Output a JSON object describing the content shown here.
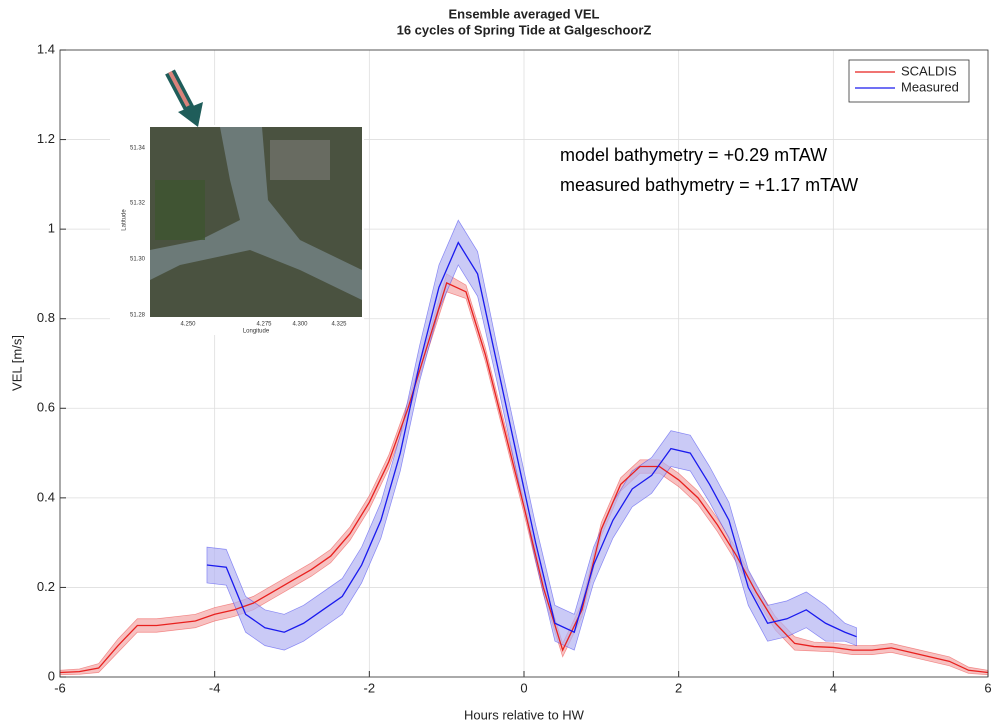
{
  "chart_data": {
    "type": "line",
    "title": "Ensemble averaged VEL",
    "subtitle": "16 cycles of Spring Tide at GalgeschoorZ",
    "x_label": "Hours relative to HW",
    "y_label": "VEL [m/s]",
    "xlim": [
      -6,
      6
    ],
    "xticks": [
      -6,
      -4,
      -2,
      0,
      2,
      4,
      6
    ],
    "ylim": [
      0,
      1.4
    ],
    "yticks": [
      0,
      0.2,
      0.4,
      0.6,
      0.8,
      1,
      1.2,
      1.4
    ],
    "grid": true,
    "legend": "upper right",
    "annotations": [
      "model bathymetry =  +0.29 mTAW",
      "measured bathymetry = +1.17 mTAW"
    ],
    "inset": {
      "x_label": "Longitude",
      "y_label": "Latitude",
      "xticks": [
        "4.250",
        "4.275",
        "4.300",
        "4.325"
      ],
      "yticks": [
        "51.34",
        "51.32",
        "51.30",
        "51.28"
      ]
    },
    "series": [
      {
        "name": "SCALDIS",
        "color": "#e8211f",
        "band_color": "#f4a6a6",
        "x": [
          -6,
          -5.75,
          -5.5,
          -5.25,
          -5,
          -4.75,
          -4.5,
          -4.25,
          -4,
          -3.75,
          -3.5,
          -3.25,
          -3,
          -2.75,
          -2.5,
          -2.25,
          -2,
          -1.75,
          -1.5,
          -1.25,
          -1,
          -0.75,
          -0.5,
          -0.25,
          0,
          0.25,
          0.5,
          0.75,
          1,
          1.25,
          1.5,
          1.75,
          2,
          2.25,
          2.5,
          2.75,
          3,
          3.25,
          3.5,
          3.75,
          4,
          4.25,
          4.5,
          4.75,
          5,
          5.25,
          5.5,
          5.75,
          6
        ],
        "values": [
          0.01,
          0.012,
          0.02,
          0.07,
          0.115,
          0.115,
          0.12,
          0.125,
          0.14,
          0.15,
          0.165,
          0.19,
          0.215,
          0.24,
          0.27,
          0.32,
          0.39,
          0.48,
          0.6,
          0.74,
          0.88,
          0.86,
          0.72,
          0.55,
          0.38,
          0.2,
          0.06,
          0.15,
          0.33,
          0.43,
          0.47,
          0.47,
          0.44,
          0.4,
          0.34,
          0.27,
          0.19,
          0.12,
          0.075,
          0.068,
          0.066,
          0.06,
          0.06,
          0.065,
          0.055,
          0.045,
          0.035,
          0.015,
          0.01
        ],
        "lower": [
          0.005,
          0.006,
          0.01,
          0.055,
          0.1,
          0.1,
          0.105,
          0.11,
          0.125,
          0.135,
          0.15,
          0.175,
          0.2,
          0.225,
          0.255,
          0.305,
          0.375,
          0.465,
          0.585,
          0.725,
          0.86,
          0.845,
          0.705,
          0.535,
          0.365,
          0.185,
          0.045,
          0.135,
          0.315,
          0.415,
          0.455,
          0.455,
          0.425,
          0.385,
          0.325,
          0.255,
          0.175,
          0.105,
          0.06,
          0.058,
          0.056,
          0.05,
          0.05,
          0.055,
          0.045,
          0.035,
          0.025,
          0.008,
          0.005
        ],
        "upper": [
          0.015,
          0.018,
          0.03,
          0.085,
          0.13,
          0.13,
          0.135,
          0.14,
          0.155,
          0.165,
          0.18,
          0.205,
          0.23,
          0.255,
          0.285,
          0.335,
          0.405,
          0.495,
          0.615,
          0.755,
          0.9,
          0.875,
          0.735,
          0.565,
          0.395,
          0.215,
          0.075,
          0.165,
          0.345,
          0.445,
          0.485,
          0.485,
          0.455,
          0.415,
          0.355,
          0.285,
          0.205,
          0.135,
          0.09,
          0.078,
          0.076,
          0.07,
          0.07,
          0.075,
          0.065,
          0.055,
          0.045,
          0.022,
          0.015
        ]
      },
      {
        "name": "Measured",
        "color": "#1a1aee",
        "band_color": "#b3b3f2",
        "x": [
          -4.1,
          -3.85,
          -3.6,
          -3.35,
          -3.1,
          -2.85,
          -2.6,
          -2.35,
          -2.1,
          -1.85,
          -1.6,
          -1.35,
          -1.1,
          -0.85,
          -0.6,
          -0.35,
          -0.1,
          0.15,
          0.4,
          0.65,
          0.9,
          1.15,
          1.4,
          1.65,
          1.9,
          2.15,
          2.4,
          2.65,
          2.9,
          3.15,
          3.4,
          3.65,
          3.9,
          4.15,
          4.3
        ],
        "values": [
          0.25,
          0.245,
          0.14,
          0.11,
          0.1,
          0.12,
          0.15,
          0.18,
          0.25,
          0.35,
          0.5,
          0.7,
          0.87,
          0.97,
          0.9,
          0.7,
          0.5,
          0.3,
          0.12,
          0.1,
          0.25,
          0.35,
          0.42,
          0.45,
          0.51,
          0.5,
          0.43,
          0.35,
          0.2,
          0.12,
          0.13,
          0.15,
          0.12,
          0.1,
          0.09
        ],
        "lower": [
          0.21,
          0.205,
          0.1,
          0.07,
          0.06,
          0.08,
          0.11,
          0.14,
          0.21,
          0.31,
          0.46,
          0.66,
          0.82,
          0.92,
          0.85,
          0.66,
          0.46,
          0.26,
          0.08,
          0.06,
          0.21,
          0.31,
          0.38,
          0.41,
          0.47,
          0.46,
          0.39,
          0.31,
          0.16,
          0.08,
          0.09,
          0.11,
          0.08,
          0.08,
          0.07
        ],
        "upper": [
          0.29,
          0.285,
          0.18,
          0.15,
          0.14,
          0.16,
          0.19,
          0.22,
          0.29,
          0.39,
          0.54,
          0.74,
          0.92,
          1.02,
          0.95,
          0.74,
          0.54,
          0.34,
          0.16,
          0.14,
          0.29,
          0.39,
          0.46,
          0.49,
          0.55,
          0.54,
          0.47,
          0.39,
          0.24,
          0.16,
          0.17,
          0.19,
          0.16,
          0.12,
          0.11
        ]
      }
    ]
  }
}
